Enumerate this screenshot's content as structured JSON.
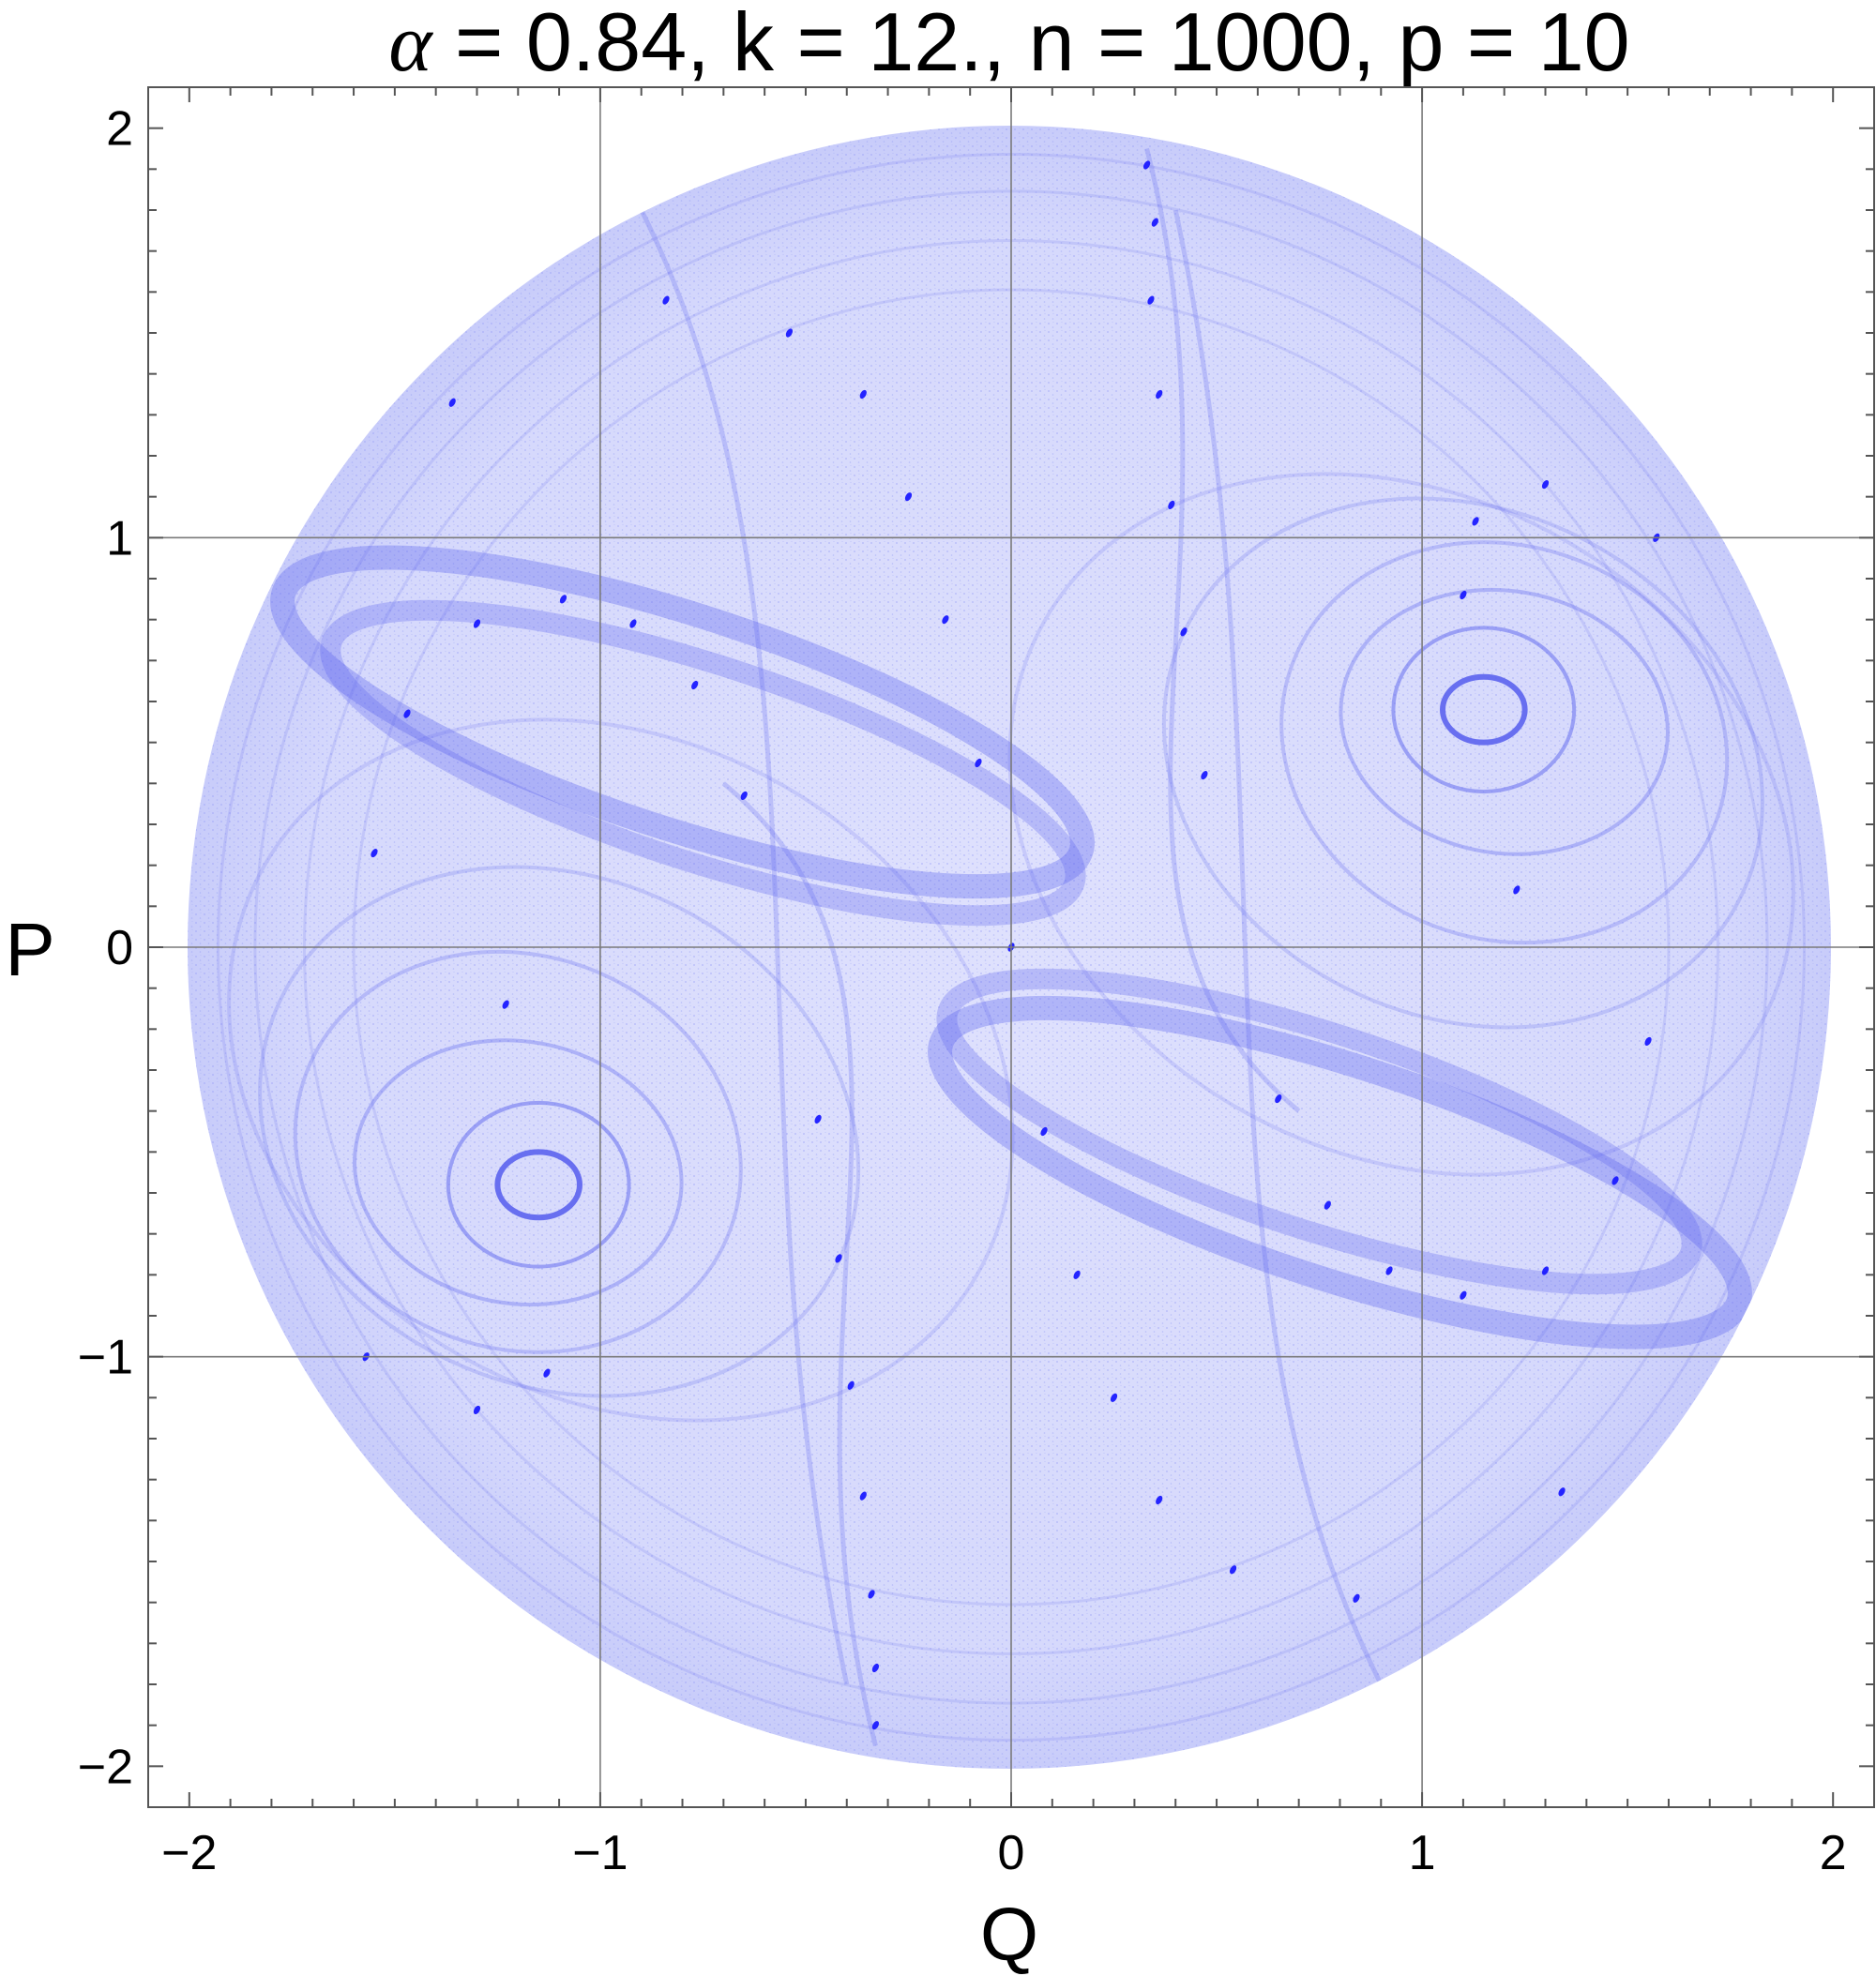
{
  "chart_data": {
    "type": "scatter",
    "title_symbol": "α",
    "title_rest": " = 0.84, k = 12., n = 1000, p = 10",
    "xlabel": "Q",
    "ylabel": "P",
    "xlim": [
      -2.1,
      2.1
    ],
    "ylim": [
      -2.1,
      2.1
    ],
    "xticks": [
      -2,
      -1,
      0,
      1,
      2
    ],
    "yticks": [
      -2,
      -1,
      0,
      1,
      2
    ],
    "xtick_labels": [
      "−2",
      "−1",
      "0",
      "1",
      "2"
    ],
    "ytick_labels": [
      "−2",
      "−1",
      "0",
      "1",
      "2"
    ],
    "grid": true,
    "gridlines_at": [
      -1,
      0,
      1
    ],
    "point_color": "#1a1aff",
    "series": [
      {
        "points_description": "dense phase-space point cloud filling disk",
        "disk_radius": 2.0,
        "dense_points": [
          [
            0.33,
            1.91
          ],
          [
            0.35,
            1.77
          ],
          [
            0.34,
            1.58
          ],
          [
            0.36,
            1.35
          ],
          [
            0.39,
            1.08
          ],
          [
            0.42,
            0.77
          ],
          [
            0.47,
            0.42
          ],
          [
            1.13,
            1.04
          ],
          [
            1.3,
            1.13
          ],
          [
            1.57,
            1.0
          ],
          [
            1.1,
            0.86
          ],
          [
            1.23,
            0.14
          ],
          [
            1.55,
            -0.23
          ],
          [
            1.47,
            -0.57
          ],
          [
            1.3,
            -0.79
          ],
          [
            1.1,
            -0.85
          ],
          [
            0.92,
            -0.79
          ],
          [
            0.77,
            -0.63
          ],
          [
            0.65,
            -0.37
          ],
          [
            0.84,
            -1.59
          ],
          [
            0.54,
            -1.52
          ],
          [
            0.36,
            -1.35
          ],
          [
            0.25,
            -1.1
          ],
          [
            0.16,
            -0.8
          ],
          [
            0.08,
            -0.45
          ],
          [
            -0.33,
            -1.9
          ],
          [
            -0.33,
            -1.76
          ],
          [
            -0.34,
            -1.58
          ],
          [
            -0.36,
            -1.34
          ],
          [
            -0.39,
            -1.07
          ],
          [
            -0.42,
            -0.76
          ],
          [
            -0.47,
            -0.42
          ],
          [
            -1.13,
            -1.04
          ],
          [
            -1.3,
            -1.13
          ],
          [
            -1.57,
            -1.0
          ],
          [
            -1.23,
            -0.14
          ],
          [
            -1.55,
            0.23
          ],
          [
            -1.47,
            0.57
          ],
          [
            -1.3,
            0.79
          ],
          [
            -1.09,
            0.85
          ],
          [
            -0.92,
            0.79
          ],
          [
            -0.77,
            0.64
          ],
          [
            -0.65,
            0.37
          ],
          [
            -0.84,
            1.58
          ],
          [
            -0.54,
            1.5
          ],
          [
            -0.36,
            1.35
          ],
          [
            -0.25,
            1.1
          ],
          [
            -0.16,
            0.8
          ],
          [
            -0.08,
            0.45
          ],
          [
            1.34,
            -1.33
          ],
          [
            -1.36,
            1.33
          ],
          [
            0.0,
            0.0
          ]
        ]
      }
    ]
  }
}
